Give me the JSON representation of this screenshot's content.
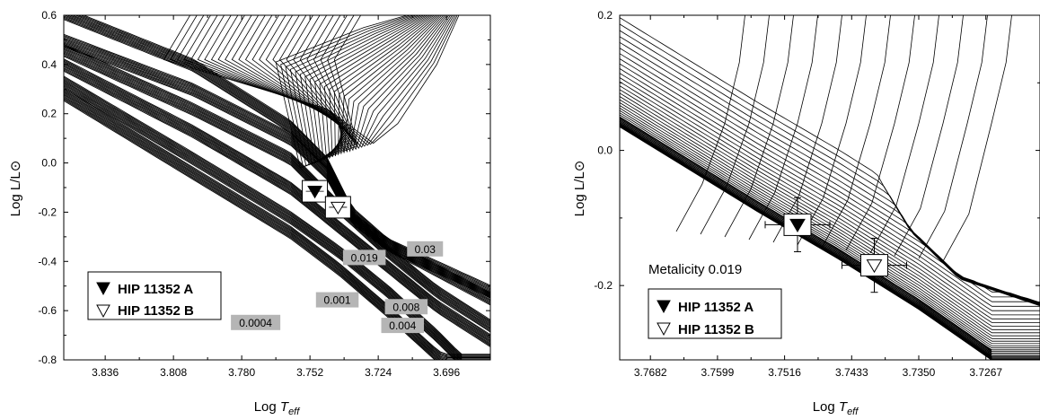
{
  "chart_data": [
    {
      "type": "line",
      "xlabel_prefix": "Log ",
      "xlabel_italic": "T",
      "xlabel_sub": "eff",
      "ylabel_prefix": "Log L/L",
      "ylabel_symbol": "⊙",
      "xlim": [
        3.853,
        3.678
      ],
      "ylim": [
        -0.8,
        0.6
      ],
      "x_ticks": [
        3.836,
        3.808,
        3.78,
        3.752,
        3.724,
        3.696
      ],
      "y_ticks": [
        0.6,
        0.4,
        0.2,
        0.0,
        -0.2,
        -0.4,
        -0.6,
        -0.8
      ],
      "x_tick_labels": [
        "3.836",
        "3.808",
        "3.780",
        "3.752",
        "3.724",
        "3.696"
      ],
      "y_tick_labels": [
        "0.6",
        "0.4",
        "0.2",
        "0.0",
        "-0.2",
        "-0.4",
        "-0.6",
        "-0.8"
      ],
      "grid": false,
      "legend_position": "bottom-left",
      "legend": [
        {
          "marker": "filled-down-triangle",
          "label": "HIP 11352 A"
        },
        {
          "marker": "open-down-triangle",
          "label": "HIP 11352 B"
        }
      ],
      "metallicity_tracks": [
        {
          "label": "0.019",
          "points": [
            [
              3.853,
              0.61
            ],
            [
              3.8,
              0.4
            ],
            [
              3.76,
              0.15
            ],
            [
              3.745,
              0.0
            ],
            [
              3.735,
              -0.2
            ],
            [
              3.72,
              -0.33
            ],
            [
              3.678,
              -0.55
            ]
          ]
        },
        {
          "label": "0.03",
          "points": [
            [
              3.853,
              0.5
            ],
            [
              3.8,
              0.3
            ],
            [
              3.76,
              0.1
            ],
            [
              3.745,
              -0.04
            ],
            [
              3.735,
              -0.22
            ],
            [
              3.72,
              -0.33
            ],
            [
              3.678,
              -0.52
            ]
          ]
        },
        {
          "label": "0.008",
          "points": [
            [
              3.853,
              0.46
            ],
            [
              3.8,
              0.22
            ],
            [
              3.76,
              0.02
            ],
            [
              3.74,
              -0.18
            ],
            [
              3.72,
              -0.36
            ],
            [
              3.7,
              -0.52
            ],
            [
              3.678,
              -0.66
            ]
          ]
        },
        {
          "label": "0.004",
          "points": [
            [
              3.853,
              0.4
            ],
            [
              3.8,
              0.13
            ],
            [
              3.76,
              -0.1
            ],
            [
              3.74,
              -0.26
            ],
            [
              3.72,
              -0.42
            ],
            [
              3.7,
              -0.58
            ],
            [
              3.678,
              -0.72
            ]
          ]
        },
        {
          "label": "0.001",
          "points": [
            [
              3.853,
              0.33
            ],
            [
              3.8,
              0.02
            ],
            [
              3.76,
              -0.22
            ],
            [
              3.74,
              -0.36
            ],
            [
              3.72,
              -0.52
            ],
            [
              3.7,
              -0.7
            ],
            [
              3.69,
              -0.8
            ]
          ]
        },
        {
          "label": "0.0004",
          "points": [
            [
              3.853,
              0.28
            ],
            [
              3.8,
              -0.04
            ],
            [
              3.76,
              -0.28
            ],
            [
              3.74,
              -0.43
            ],
            [
              3.72,
              -0.6
            ],
            [
              3.7,
              -0.78
            ],
            [
              3.697,
              -0.8
            ]
          ]
        }
      ],
      "track_box_labels": [
        {
          "text": "0.019",
          "x": 3.7297,
          "y": -0.384
        },
        {
          "text": "0.03",
          "x": 3.7048,
          "y": -0.349
        },
        {
          "text": "0.008",
          "x": 3.7125,
          "y": -0.584
        },
        {
          "text": "0.004",
          "x": 3.714,
          "y": -0.66
        },
        {
          "text": "0.001",
          "x": 3.7408,
          "y": -0.556
        },
        {
          "text": "0.0004",
          "x": 3.7743,
          "y": -0.648
        }
      ],
      "stars": [
        {
          "name": "HIP 11352 A",
          "marker": "filled-down-triangle",
          "x": 3.75,
          "y": -0.115
        },
        {
          "name": "HIP 11352 B",
          "marker": "open-down-triangle",
          "x": 3.7405,
          "y": -0.18
        }
      ]
    },
    {
      "type": "line",
      "xlabel_prefix": "Log ",
      "xlabel_italic": "T",
      "xlabel_sub": "eff",
      "ylabel_prefix": "Log L/L",
      "ylabel_symbol": "⊙",
      "xlim": [
        3.772,
        3.72
      ],
      "ylim": [
        -0.31,
        0.2
      ],
      "x_ticks": [
        3.7682,
        3.7599,
        3.7516,
        3.7433,
        3.735,
        3.7267
      ],
      "y_ticks": [
        0.2,
        0.0,
        -0.2
      ],
      "x_tick_labels": [
        "3.7682",
        "3.7599",
        "3.7516",
        "3.7433",
        "3.7350",
        "3.7267"
      ],
      "y_tick_labels": [
        "0.2",
        "0.0",
        "-0.2"
      ],
      "grid": false,
      "annotation": "Metalicity 0.019",
      "legend_position": "bottom-left",
      "legend": [
        {
          "marker": "filled-down-triangle",
          "label": "HIP 11352 A"
        },
        {
          "marker": "open-down-triangle",
          "label": "HIP 11352 B"
        }
      ],
      "isochrone_bundle": {
        "zams_points": [
          [
            3.772,
            0.035
          ],
          [
            3.755,
            -0.09
          ],
          [
            3.745,
            -0.16
          ],
          [
            3.735,
            -0.235
          ],
          [
            3.726,
            -0.31
          ]
        ],
        "turnoff_points": [
          [
            3.75,
            0.2
          ],
          [
            3.742,
            0.08
          ],
          [
            3.74,
            -0.02
          ],
          [
            3.736,
            -0.1
          ],
          [
            3.73,
            -0.17
          ],
          [
            3.72,
            -0.21
          ]
        ]
      },
      "stars": [
        {
          "name": "HIP 11352 A",
          "marker": "filled-down-triangle",
          "x": 3.75,
          "y": -0.11,
          "xerr": 0.004,
          "yerr": 0.04
        },
        {
          "name": "HIP 11352 B",
          "marker": "open-down-triangle",
          "x": 3.7405,
          "y": -0.17,
          "xerr": 0.004,
          "yerr": 0.04
        }
      ]
    }
  ]
}
